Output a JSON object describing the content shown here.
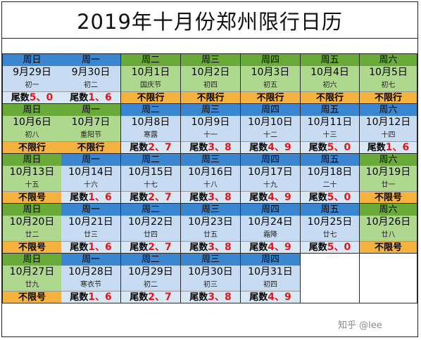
{
  "title": "2019年十月份郑州限行日历",
  "watermark": "知乎 @lee",
  "colors": {
    "weekday_header": "#3a86d0",
    "weekend_header": "#6aaa39",
    "no_restriction_bg": "#f6b23f",
    "plate_digit_red": "#e8141b"
  },
  "weeks": [
    [
      {
        "weekday": "周日",
        "date": "9月29日",
        "lunar": "初一",
        "status_prefix": "尾数",
        "status_digits": [
          "5",
          "0"
        ],
        "status_text": "",
        "kind": "blue"
      },
      {
        "weekday": "周一",
        "date": "9月30日",
        "lunar": "初二",
        "status_prefix": "尾数",
        "status_digits": [
          "1",
          "6"
        ],
        "status_text": "",
        "kind": "blue"
      },
      {
        "weekday": "周二",
        "date": "10月1日",
        "lunar": "国庆节",
        "status_prefix": "",
        "status_digits": [],
        "status_text": "不限行",
        "kind": "green"
      },
      {
        "weekday": "周三",
        "date": "10月2日",
        "lunar": "初四",
        "status_prefix": "",
        "status_digits": [],
        "status_text": "不限行",
        "kind": "green"
      },
      {
        "weekday": "周四",
        "date": "10月3日",
        "lunar": "初五",
        "status_prefix": "",
        "status_digits": [],
        "status_text": "不限行",
        "kind": "green"
      },
      {
        "weekday": "周五",
        "date": "10月4日",
        "lunar": "初六",
        "status_prefix": "",
        "status_digits": [],
        "status_text": "不限行",
        "kind": "green"
      },
      {
        "weekday": "周六",
        "date": "10月5日",
        "lunar": "初七",
        "status_prefix": "",
        "status_digits": [],
        "status_text": "不限行",
        "kind": "green"
      }
    ],
    [
      {
        "weekday": "周日",
        "date": "10月6日",
        "lunar": "初八",
        "status_prefix": "",
        "status_digits": [],
        "status_text": "不限行",
        "kind": "green"
      },
      {
        "weekday": "周一",
        "date": "10月7日",
        "lunar": "重阳节",
        "status_prefix": "",
        "status_digits": [],
        "status_text": "不限行",
        "kind": "green"
      },
      {
        "weekday": "周二",
        "date": "10月8日",
        "lunar": "寒露",
        "status_prefix": "尾数",
        "status_digits": [
          "2",
          "7"
        ],
        "status_text": "",
        "kind": "blue"
      },
      {
        "weekday": "周三",
        "date": "10月9日",
        "lunar": "十一",
        "status_prefix": "尾数",
        "status_digits": [
          "3",
          "8"
        ],
        "status_text": "",
        "kind": "blue"
      },
      {
        "weekday": "周四",
        "date": "10月10日",
        "lunar": "十二",
        "status_prefix": "尾数",
        "status_digits": [
          "4",
          "9"
        ],
        "status_text": "",
        "kind": "blue"
      },
      {
        "weekday": "周五",
        "date": "10月11日",
        "lunar": "十三",
        "status_prefix": "尾数",
        "status_digits": [
          "5",
          "0"
        ],
        "status_text": "",
        "kind": "blue"
      },
      {
        "weekday": "周六",
        "date": "10月12日",
        "lunar": "十四",
        "status_prefix": "尾数",
        "status_digits": [
          "1",
          "6"
        ],
        "status_text": "",
        "kind": "blue"
      }
    ],
    [
      {
        "weekday": "周日",
        "date": "10月13日",
        "lunar": "十五",
        "status_prefix": "",
        "status_digits": [],
        "status_text": "不限号",
        "kind": "green"
      },
      {
        "weekday": "周一",
        "date": "10月14日",
        "lunar": "十六",
        "status_prefix": "尾数",
        "status_digits": [
          "1",
          "6"
        ],
        "status_text": "",
        "kind": "blue"
      },
      {
        "weekday": "周二",
        "date": "10月15日",
        "lunar": "十七",
        "status_prefix": "尾数",
        "status_digits": [
          "2",
          "7"
        ],
        "status_text": "",
        "kind": "blue"
      },
      {
        "weekday": "周三",
        "date": "10月16日",
        "lunar": "十八",
        "status_prefix": "尾数",
        "status_digits": [
          "3",
          "8"
        ],
        "status_text": "",
        "kind": "blue"
      },
      {
        "weekday": "周四",
        "date": "10月17日",
        "lunar": "十九",
        "status_prefix": "尾数",
        "status_digits": [
          "4",
          "9"
        ],
        "status_text": "",
        "kind": "blue"
      },
      {
        "weekday": "周五",
        "date": "10月18日",
        "lunar": "二十",
        "status_prefix": "尾数",
        "status_digits": [
          "5",
          "0"
        ],
        "status_text": "",
        "kind": "blue"
      },
      {
        "weekday": "周六",
        "date": "10月19日",
        "lunar": "廿一",
        "status_prefix": "",
        "status_digits": [],
        "status_text": "不限号",
        "kind": "green"
      }
    ],
    [
      {
        "weekday": "周日",
        "date": "10月20日",
        "lunar": "廿二",
        "status_prefix": "",
        "status_digits": [],
        "status_text": "不限号",
        "kind": "green"
      },
      {
        "weekday": "周一",
        "date": "10月21日",
        "lunar": "廿三",
        "status_prefix": "尾数",
        "status_digits": [
          "1",
          "6"
        ],
        "status_text": "",
        "kind": "blue"
      },
      {
        "weekday": "周二",
        "date": "10月22日",
        "lunar": "廿四",
        "status_prefix": "尾数",
        "status_digits": [
          "2",
          "7"
        ],
        "status_text": "",
        "kind": "blue"
      },
      {
        "weekday": "周三",
        "date": "10月23日",
        "lunar": "廿五",
        "status_prefix": "尾数",
        "status_digits": [
          "3",
          "8"
        ],
        "status_text": "",
        "kind": "blue"
      },
      {
        "weekday": "周四",
        "date": "10月24日",
        "lunar": "霜降",
        "status_prefix": "尾数",
        "status_digits": [
          "4",
          "9"
        ],
        "status_text": "",
        "kind": "blue"
      },
      {
        "weekday": "周五",
        "date": "10月25日",
        "lunar": "廿七",
        "status_prefix": "尾数",
        "status_digits": [
          "5",
          "0"
        ],
        "status_text": "",
        "kind": "blue"
      },
      {
        "weekday": "周六",
        "date": "10月26日",
        "lunar": "廿八",
        "status_prefix": "",
        "status_digits": [],
        "status_text": "不限号",
        "kind": "green"
      }
    ],
    [
      {
        "weekday": "周日",
        "date": "10月27日",
        "lunar": "廿九",
        "status_prefix": "",
        "status_digits": [],
        "status_text": "不限号",
        "kind": "green"
      },
      {
        "weekday": "周一",
        "date": "10月28日",
        "lunar": "寒衣节",
        "status_prefix": "尾数",
        "status_digits": [
          "1",
          "6"
        ],
        "status_text": "",
        "kind": "blue"
      },
      {
        "weekday": "周二",
        "date": "10月29日",
        "lunar": "初二",
        "status_prefix": "尾数",
        "status_digits": [
          "2",
          "7"
        ],
        "status_text": "",
        "kind": "blue"
      },
      {
        "weekday": "周三",
        "date": "10月30日",
        "lunar": "初三",
        "status_prefix": "尾数",
        "status_digits": [
          "3",
          "8"
        ],
        "status_text": "",
        "kind": "blue"
      },
      {
        "weekday": "周四",
        "date": "10月31日",
        "lunar": "初四",
        "status_prefix": "尾数",
        "status_digits": [
          "4",
          "9"
        ],
        "status_text": "",
        "kind": "blue"
      },
      {
        "weekday": "",
        "date": "",
        "lunar": "",
        "status_prefix": "",
        "status_digits": [],
        "status_text": "",
        "kind": "empty"
      },
      {
        "weekday": "",
        "date": "",
        "lunar": "",
        "status_prefix": "",
        "status_digits": [],
        "status_text": "",
        "kind": "empty"
      }
    ]
  ]
}
